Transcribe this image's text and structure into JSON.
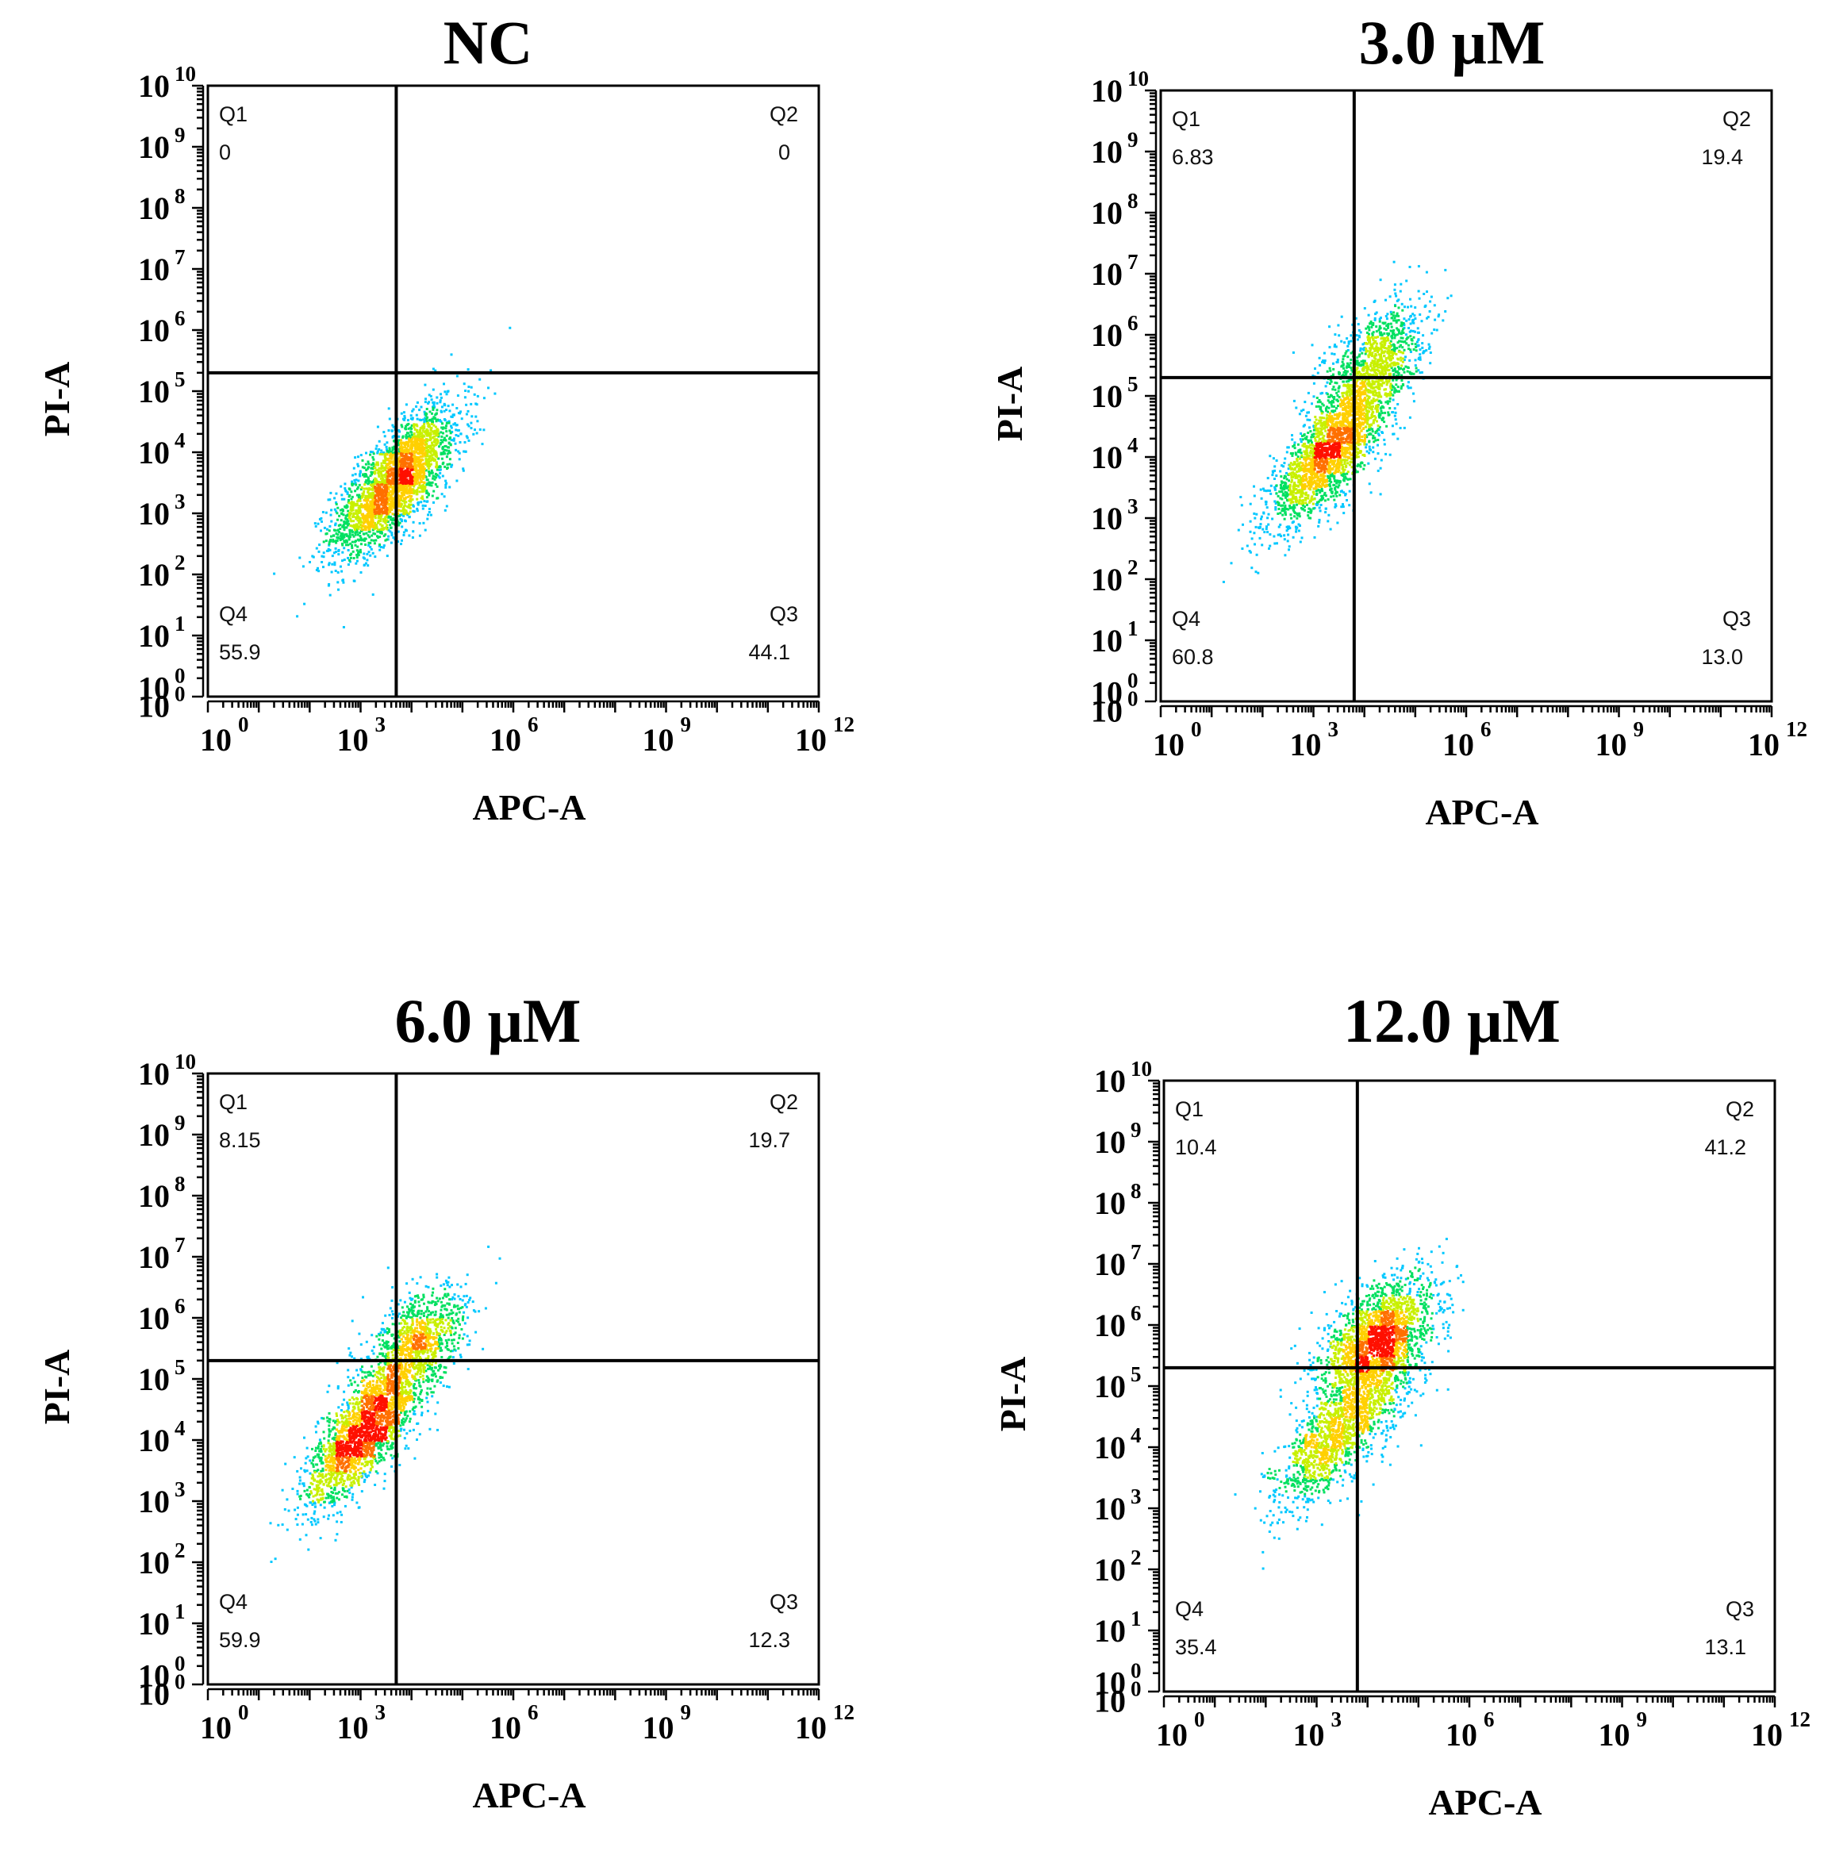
{
  "chart_data": [
    {
      "type": "scatter",
      "title": "NC",
      "xlabel": "APC-A",
      "ylabel": "PI-A",
      "x_scale": "log",
      "y_scale": "log",
      "xlim_exp": [
        0,
        12
      ],
      "ylim_exp": [
        0,
        10
      ],
      "x_ticks": [
        "10|0",
        "10|3",
        "10|6",
        "10|9",
        "10|12"
      ],
      "y_ticks": [
        "10|0",
        "10|0",
        "10|1",
        "10|2",
        "10|3",
        "10|4",
        "10|5",
        "10|6",
        "10|7",
        "10|8",
        "10|9",
        "10|10"
      ],
      "gate_x_exp": 3.7,
      "gate_y_exp": 5.3,
      "quadrants": [
        {
          "name": "Q1",
          "value": "0"
        },
        {
          "name": "Q2",
          "value": "0"
        },
        {
          "name": "Q3",
          "value": "44.1"
        },
        {
          "name": "Q4",
          "value": "55.9"
        }
      ],
      "populations": [
        {
          "cx": 3.5,
          "cy": 3.4,
          "sx": 0.55,
          "sy": 0.55,
          "rho": 0.7,
          "n": 1900
        },
        {
          "cx": 4.1,
          "cy": 3.9,
          "sx": 0.5,
          "sy": 0.55,
          "rho": 0.6,
          "n": 800
        }
      ]
    },
    {
      "type": "scatter",
      "title": "3.0 μM",
      "xlabel": "APC-A",
      "ylabel": "PI-A",
      "x_scale": "log",
      "y_scale": "log",
      "xlim_exp": [
        0,
        12
      ],
      "ylim_exp": [
        0,
        10
      ],
      "x_ticks": [
        "10|0",
        "10|3",
        "10|6",
        "10|9",
        "10|12"
      ],
      "y_ticks": [
        "10|0",
        "10|0",
        "10|1",
        "10|2",
        "10|3",
        "10|4",
        "10|5",
        "10|6",
        "10|7",
        "10|8",
        "10|9",
        "10|10"
      ],
      "gate_x_exp": 3.8,
      "gate_y_exp": 5.3,
      "quadrants": [
        {
          "name": "Q1",
          "value": "6.83"
        },
        {
          "name": "Q2",
          "value": "19.4"
        },
        {
          "name": "Q3",
          "value": "13.0"
        },
        {
          "name": "Q4",
          "value": "60.8"
        }
      ],
      "populations": [
        {
          "cx": 3.2,
          "cy": 4.0,
          "sx": 0.55,
          "sy": 0.55,
          "rho": 0.75,
          "n": 1800
        },
        {
          "cx": 4.2,
          "cy": 5.6,
          "sx": 0.5,
          "sy": 0.5,
          "rho": 0.5,
          "n": 900
        },
        {
          "cx": 3.8,
          "cy": 4.7,
          "sx": 0.5,
          "sy": 0.6,
          "rho": 0.6,
          "n": 500
        }
      ]
    },
    {
      "type": "scatter",
      "title": "6.0 μM",
      "xlabel": "APC-A",
      "ylabel": "PI-A",
      "x_scale": "log",
      "y_scale": "log",
      "xlim_exp": [
        0,
        12
      ],
      "ylim_exp": [
        0,
        10
      ],
      "x_ticks": [
        "10|0",
        "10|3",
        "10|6",
        "10|9",
        "10|12"
      ],
      "y_ticks": [
        "10|0",
        "10|0",
        "10|1",
        "10|2",
        "10|3",
        "10|4",
        "10|5",
        "10|6",
        "10|7",
        "10|8",
        "10|9",
        "10|10"
      ],
      "gate_x_exp": 3.7,
      "gate_y_exp": 5.3,
      "quadrants": [
        {
          "name": "Q1",
          "value": "8.15"
        },
        {
          "name": "Q2",
          "value": "19.7"
        },
        {
          "name": "Q3",
          "value": "12.3"
        },
        {
          "name": "Q4",
          "value": "59.9"
        }
      ],
      "populations": [
        {
          "cx": 3.0,
          "cy": 4.1,
          "sx": 0.55,
          "sy": 0.6,
          "rho": 0.75,
          "n": 1800
        },
        {
          "cx": 4.1,
          "cy": 5.6,
          "sx": 0.5,
          "sy": 0.45,
          "rho": 0.5,
          "n": 900
        },
        {
          "cx": 3.6,
          "cy": 4.8,
          "sx": 0.5,
          "sy": 0.6,
          "rho": 0.6,
          "n": 450
        }
      ]
    },
    {
      "type": "scatter",
      "title": "12.0 μM",
      "xlabel": "APC-A",
      "ylabel": "PI-A",
      "x_scale": "log",
      "y_scale": "log",
      "xlim_exp": [
        0,
        12
      ],
      "ylim_exp": [
        0,
        10
      ],
      "x_ticks": [
        "10|0",
        "10|3",
        "10|6",
        "10|9",
        "10|12"
      ],
      "y_ticks": [
        "10|0",
        "10|0",
        "10|1",
        "10|2",
        "10|3",
        "10|4",
        "10|5",
        "10|6",
        "10|7",
        "10|8",
        "10|9",
        "10|10"
      ],
      "gate_x_exp": 3.8,
      "gate_y_exp": 5.3,
      "quadrants": [
        {
          "name": "Q1",
          "value": "10.4"
        },
        {
          "name": "Q2",
          "value": "41.2"
        },
        {
          "name": "Q3",
          "value": "13.1"
        },
        {
          "name": "Q4",
          "value": "35.4"
        }
      ],
      "populations": [
        {
          "cx": 4.2,
          "cy": 5.8,
          "sx": 0.55,
          "sy": 0.5,
          "rho": 0.5,
          "n": 1900
        },
        {
          "cx": 3.2,
          "cy": 4.1,
          "sx": 0.5,
          "sy": 0.55,
          "rho": 0.7,
          "n": 1000
        },
        {
          "cx": 4.0,
          "cy": 4.8,
          "sx": 0.5,
          "sy": 0.6,
          "rho": 0.5,
          "n": 600
        }
      ]
    }
  ]
}
